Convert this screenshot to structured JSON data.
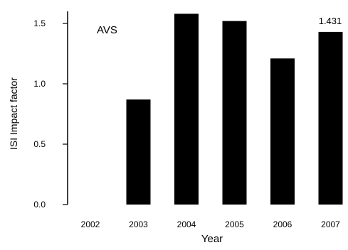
{
  "chart_data": {
    "type": "bar",
    "title": "",
    "xlabel": "Year",
    "ylabel": "ISI Impact factor",
    "categories": [
      "2002",
      "2003",
      "2004",
      "2005",
      "2006",
      "2007"
    ],
    "values": [
      0.0,
      0.87,
      1.58,
      1.52,
      1.21,
      1.43
    ],
    "ylim": [
      0,
      1.5
    ],
    "yticks": [
      "0.0",
      "0.5",
      "1.0",
      "1.5"
    ],
    "grid": false,
    "bar_color": "#000000",
    "annotations": [
      {
        "text": "AVS"
      },
      {
        "text": "1.431"
      }
    ]
  }
}
